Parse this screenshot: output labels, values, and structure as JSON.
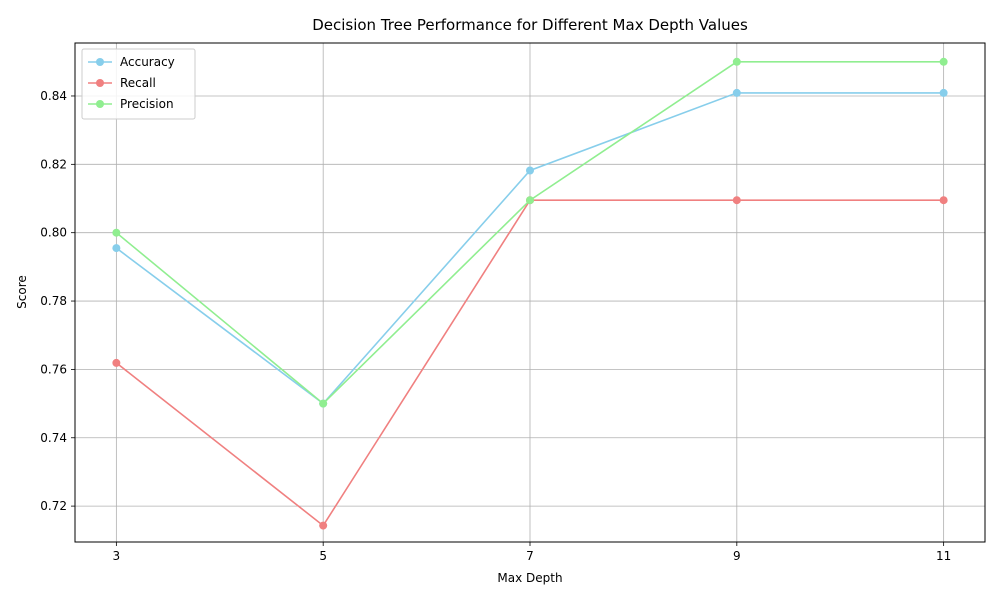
{
  "chart_data": {
    "type": "line",
    "title": "Decision Tree Performance for Different Max Depth Values",
    "xlabel": "Max Depth",
    "ylabel": "Score",
    "x": [
      3,
      5,
      7,
      9,
      11
    ],
    "x_ticks": [
      "3",
      "5",
      "7",
      "9",
      "11"
    ],
    "y_ticks": [
      "0.72",
      "0.74",
      "0.76",
      "0.78",
      "0.80",
      "0.82",
      "0.84"
    ],
    "xlim": [
      2.6,
      11.4
    ],
    "ylim": [
      0.7095,
      0.8555
    ],
    "grid": true,
    "legend_position": "upper-left",
    "series": [
      {
        "name": "Accuracy",
        "color": "#87ceeb",
        "values": [
          0.7955,
          0.75,
          0.8182,
          0.8409,
          0.8409
        ]
      },
      {
        "name": "Recall",
        "color": "#f08080",
        "values": [
          0.7619,
          0.7143,
          0.8095,
          0.8095,
          0.8095
        ]
      },
      {
        "name": "Precision",
        "color": "#90ee90",
        "values": [
          0.8,
          0.75,
          0.8095,
          0.85,
          0.85
        ]
      }
    ]
  }
}
